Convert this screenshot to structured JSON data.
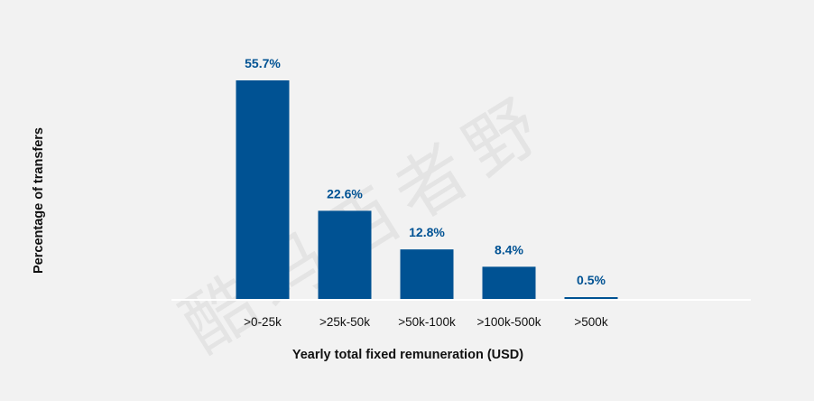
{
  "chart_data": {
    "type": "bar",
    "xlabel": "Yearly total fixed remuneration (USD)",
    "ylabel": "Percentage of transfers",
    "categories": [
      ">0-25k",
      ">25k-50k",
      ">50k-100k",
      ">100k-500k",
      ">500k"
    ],
    "values": [
      55.7,
      22.6,
      12.8,
      8.4,
      0.5
    ],
    "data_labels": [
      "55.7%",
      "22.6%",
      "12.8%",
      "8.4%",
      "0.5%"
    ],
    "ylim": [
      0,
      55.7
    ],
    "grid": false,
    "legend": "none",
    "colors": {
      "bar": "#005293",
      "data_label": "#005293",
      "axis_line": "#ffffff",
      "text": "#111111",
      "background": "#f2f2f2"
    }
  },
  "watermark": {
    "text": "酷玛西者野"
  }
}
